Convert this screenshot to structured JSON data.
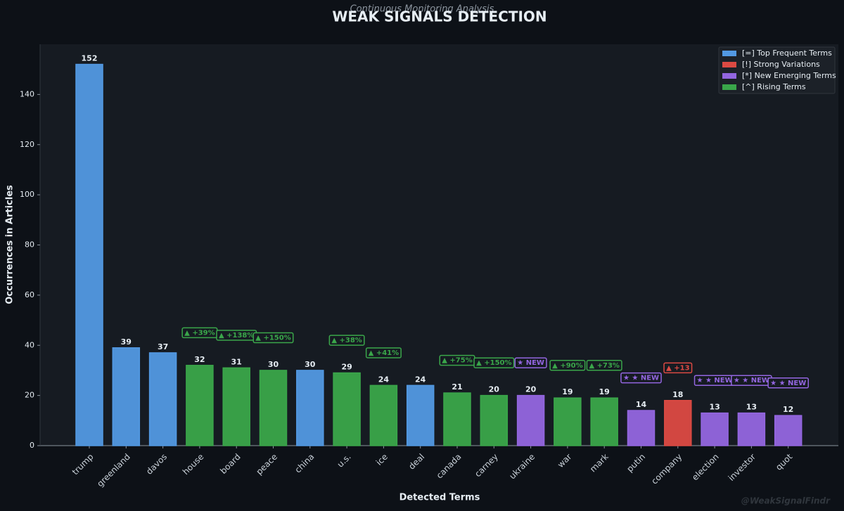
{
  "chart_data": {
    "type": "bar",
    "title": "WEAK SIGNALS DETECTION",
    "subtitle": "Continuous Monitoring Analysis",
    "x_label": "Detected Terms",
    "y_label": "Occurrences in Articles",
    "watermark": "@WeakSignalFindr",
    "categories": [
      "trump",
      "greenland",
      "davos",
      "house",
      "board",
      "peace",
      "china",
      "u.s.",
      "ice",
      "deal",
      "canada",
      "carney",
      "ukraine",
      "war",
      "mark",
      "putin",
      "company",
      "election",
      "investor",
      "quot"
    ],
    "values": [
      152,
      39,
      37,
      32,
      31,
      30,
      30,
      29,
      24,
      24,
      21,
      20,
      20,
      19,
      19,
      14,
      18,
      13,
      13,
      12
    ],
    "colors": [
      "#5299e3",
      "#5299e3",
      "#5299e3",
      "#3aa64a",
      "#3aa64a",
      "#3aa64a",
      "#5299e3",
      "#3aa64a",
      "#3aa64a",
      "#5299e3",
      "#3aa64a",
      "#3aa64a",
      "#9366e0",
      "#3aa64a",
      "#3aa64a",
      "#9366e0",
      "#dc4a43",
      "#9366e0",
      "#9366e0",
      "#9366e0"
    ],
    "annotations": [
      null,
      null,
      null,
      "▲ +39%",
      "▲ +138%",
      "▲ +150%",
      null,
      "▲ +38%",
      "▲ +41%",
      null,
      "▲ +75%",
      "▲ +150%",
      "★ NEW",
      "▲ +90%",
      "▲ +73%",
      "★ ★ NEW",
      "▲ +13",
      "★ ★ NEW",
      "★ ★ NEW",
      "★ ★ NEW"
    ],
    "legend": [
      {
        "name": "[=] Top Frequent Terms",
        "color": "#5299e3"
      },
      {
        "name": "[!] Strong Variations",
        "color": "#dc4a43"
      },
      {
        "name": "[*] New Emerging Terms",
        "color": "#9366e0"
      },
      {
        "name": "[^] Rising Terms",
        "color": "#3aa64a"
      }
    ],
    "legend_position": "upper right",
    "ylim": [
      0,
      160
    ],
    "yticks": [
      0,
      20,
      40,
      60,
      80,
      100,
      120,
      140
    ],
    "grid": false
  }
}
